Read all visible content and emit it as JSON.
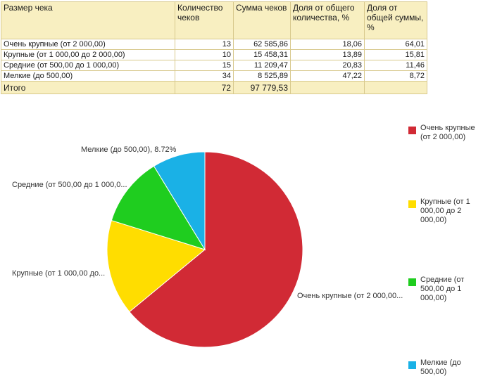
{
  "table": {
    "headers": [
      "Размер чека",
      "Количество чеков",
      "Сумма чеков",
      "Доля от общего количества, %",
      "Доля от общей суммы, %"
    ],
    "rows": [
      [
        "Очень крупные (от 2 000,00)",
        "13",
        "62 585,86",
        "18,06",
        "64,01"
      ],
      [
        "Крупные (от 1 000,00 до 2 000,00)",
        "10",
        "15 458,31",
        "13,89",
        "15,81"
      ],
      [
        "Средние (от 500,00 до 1 000,00)",
        "15",
        "11 209,47",
        "20,83",
        "11,46"
      ],
      [
        "Мелкие (до 500,00)",
        "34",
        "8 525,89",
        "47,22",
        "8,72"
      ]
    ],
    "total": {
      "label": "Итого",
      "count": "72",
      "sum": "97 779,53"
    }
  },
  "chart_data": {
    "type": "pie",
    "slices": [
      {
        "name": "Очень крупные (от 2 000,00)",
        "value": 64.01,
        "color": "#d12a35",
        "slice_label": "Очень крупные (от 2 000,00..."
      },
      {
        "name": "Крупные (от 1 000,00 до 2 000,00)",
        "value": 15.81,
        "color": "#ffdd00",
        "slice_label": "Крупные (от 1 000,00  до..."
      },
      {
        "name": "Средние (от 500,00 до 1 000,00)",
        "value": 11.46,
        "color": "#1fcd1f",
        "slice_label": "Средние (от 500,00 до 1 000,0..."
      },
      {
        "name": "Мелкие (до 500,00)",
        "value": 8.72,
        "color": "#1ab1e6",
        "slice_label": "Мелкие (до 500,00), 8.72%"
      }
    ],
    "legend": {
      "placement": "right",
      "labels": [
        "Очень крупные (от 2 000,00)",
        "Крупные (от 1 000,00 до 2 000,00)",
        "Средние (от 500,00 до 1 000,00)",
        "Мелкие (до 500,00)"
      ]
    }
  }
}
